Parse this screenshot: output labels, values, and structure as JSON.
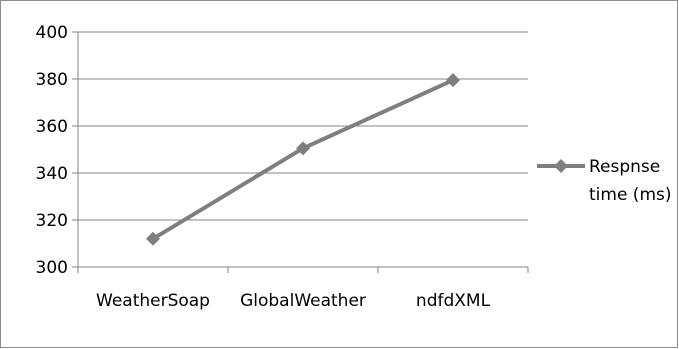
{
  "chart_data": {
    "type": "line",
    "title": "",
    "xlabel": "",
    "ylabel": "",
    "categories": [
      "WeatherSoap",
      "GlobalWeather",
      "ndfdXML"
    ],
    "series": [
      {
        "name": "Respnse time (ms)",
        "values": [
          312,
          350.5,
          379.5
        ]
      }
    ],
    "ylim": [
      300,
      400
    ],
    "yticks": [
      300,
      320,
      340,
      360,
      380,
      400
    ],
    "grid": true,
    "legend_position": "right",
    "marker": "diamond",
    "colors": {
      "series": "#7f7f7f",
      "grid": "#868686",
      "axis": "#868686",
      "border": "#8c8c8c"
    }
  },
  "legend": {
    "line1": "Respnse",
    "line2": "time (ms)"
  }
}
